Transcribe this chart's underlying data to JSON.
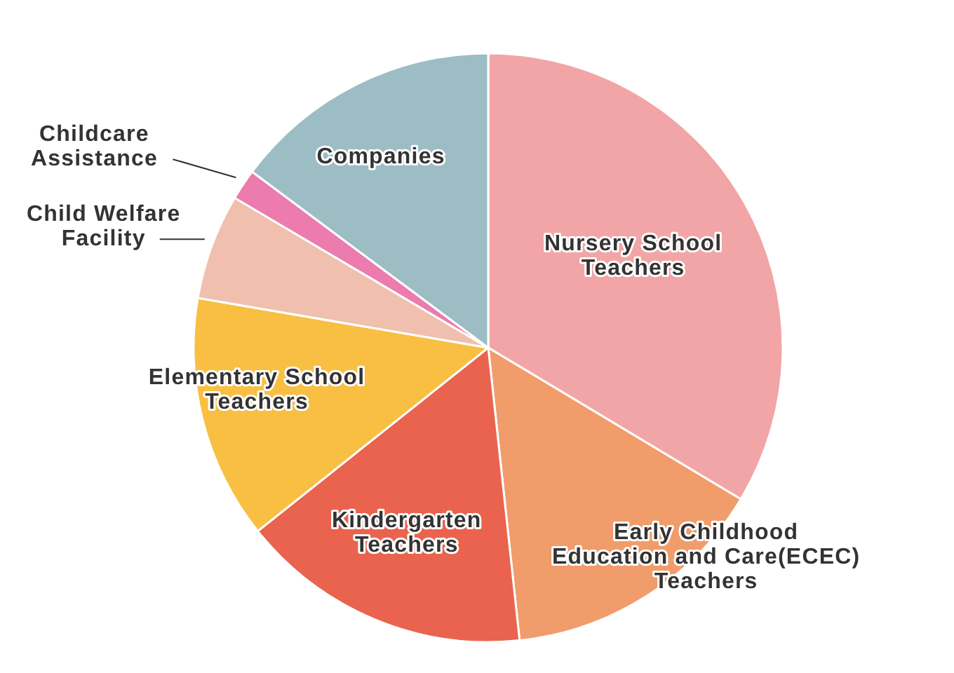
{
  "chart_data": {
    "type": "pie",
    "categories": [
      "Nursery School\nTeachers",
      "Early Childhood\nEducation and Care(ECEC)\nTeachers",
      "Kindergarten\nTeachers",
      "Elementary School\nTeachers",
      "Child Welfare\nFacility",
      "Childcare\nAssistance",
      "Companies"
    ],
    "values": [
      33.6,
      14.7,
      16.0,
      13.4,
      5.8,
      1.7,
      14.8
    ],
    "colors": [
      "#f2a5a6",
      "#f19c6b",
      "#e9634e",
      "#f9bf43",
      "#f0bfad",
      "#ec7bae",
      "#9dbdc4"
    ]
  }
}
